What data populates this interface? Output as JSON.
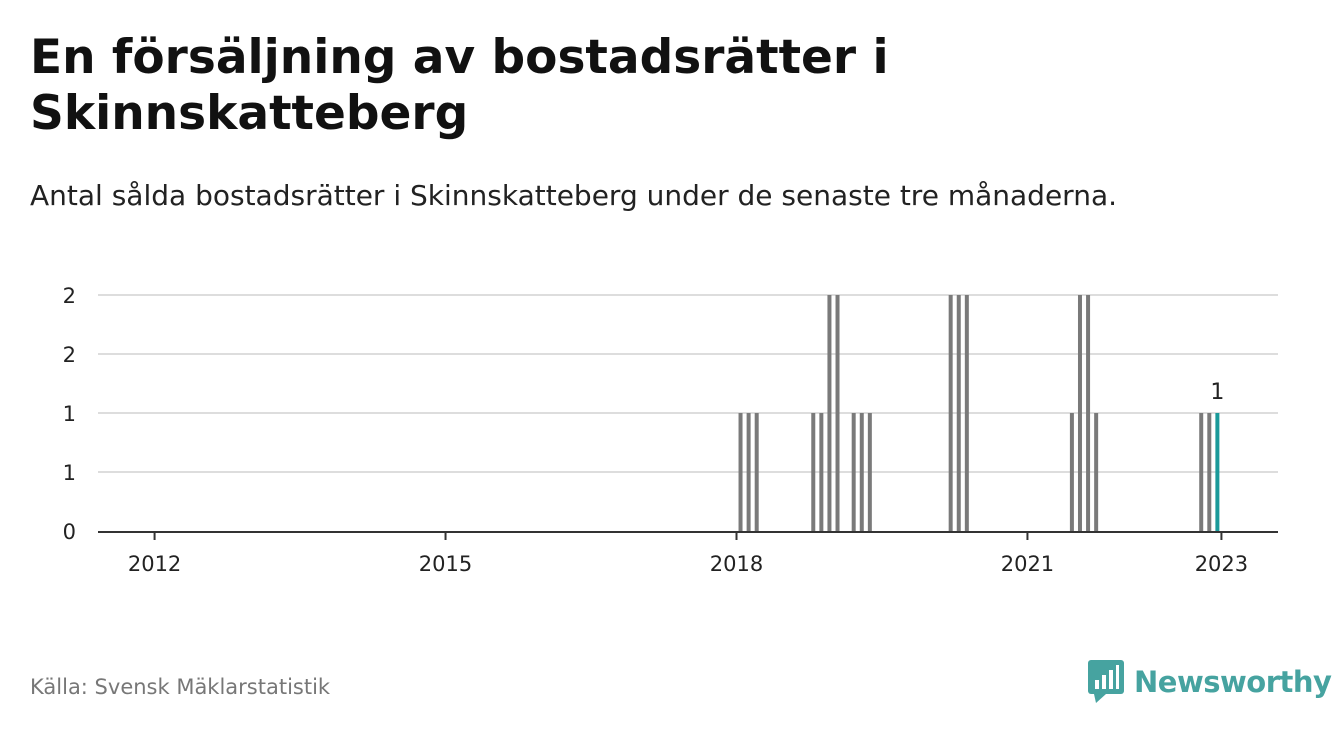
{
  "title": "En försäljning av bostadsrätter i Skinnskatteberg",
  "subtitle": "Antal sålda bostadsrätter i Skinnskatteberg under de senaste tre månaderna.",
  "source": "Källa: Svensk Mäklarstatistik",
  "brand": {
    "name": "Newsworthy",
    "logo_icon": "bar-chart-speech-bubble-icon",
    "color": "#46a3a0"
  },
  "colors": {
    "bar": "#7a7a7a",
    "highlight": "#1a9a9a",
    "grid": "#dddddd",
    "axis": "#333333"
  },
  "chart_data": {
    "type": "bar",
    "title": "En försäljning av bostadsrätter i Skinnskatteberg",
    "xlabel": "",
    "ylabel": "",
    "ylim": [
      0,
      2
    ],
    "y_ticks": [
      {
        "value": 0,
        "label": "0"
      },
      {
        "value": 0.5,
        "label": "1"
      },
      {
        "value": 1,
        "label": "1"
      },
      {
        "value": 1.5,
        "label": "2"
      },
      {
        "value": 2,
        "label": "2"
      }
    ],
    "x_ticks": [
      "2012",
      "2015",
      "2018",
      "2021",
      "2023"
    ],
    "x_range": [
      "2011-06",
      "2023-08"
    ],
    "grid": true,
    "legend": "none",
    "highlight_label": "1",
    "points": [
      {
        "x": "2018-01",
        "value": 1
      },
      {
        "x": "2018-02",
        "value": 1
      },
      {
        "x": "2018-03",
        "value": 1
      },
      {
        "x": "2018-10",
        "value": 1
      },
      {
        "x": "2018-11",
        "value": 1
      },
      {
        "x": "2018-12",
        "value": 2
      },
      {
        "x": "2019-01",
        "value": 2
      },
      {
        "x": "2019-03",
        "value": 1
      },
      {
        "x": "2019-04",
        "value": 1
      },
      {
        "x": "2019-05",
        "value": 1
      },
      {
        "x": "2020-03",
        "value": 2
      },
      {
        "x": "2020-04",
        "value": 2
      },
      {
        "x": "2020-05",
        "value": 2
      },
      {
        "x": "2021-06",
        "value": 1
      },
      {
        "x": "2021-07",
        "value": 2
      },
      {
        "x": "2021-08",
        "value": 2
      },
      {
        "x": "2021-09",
        "value": 1
      },
      {
        "x": "2022-10",
        "value": 1
      },
      {
        "x": "2022-11",
        "value": 1
      },
      {
        "x": "2022-12",
        "value": 1,
        "highlight": true
      }
    ]
  }
}
